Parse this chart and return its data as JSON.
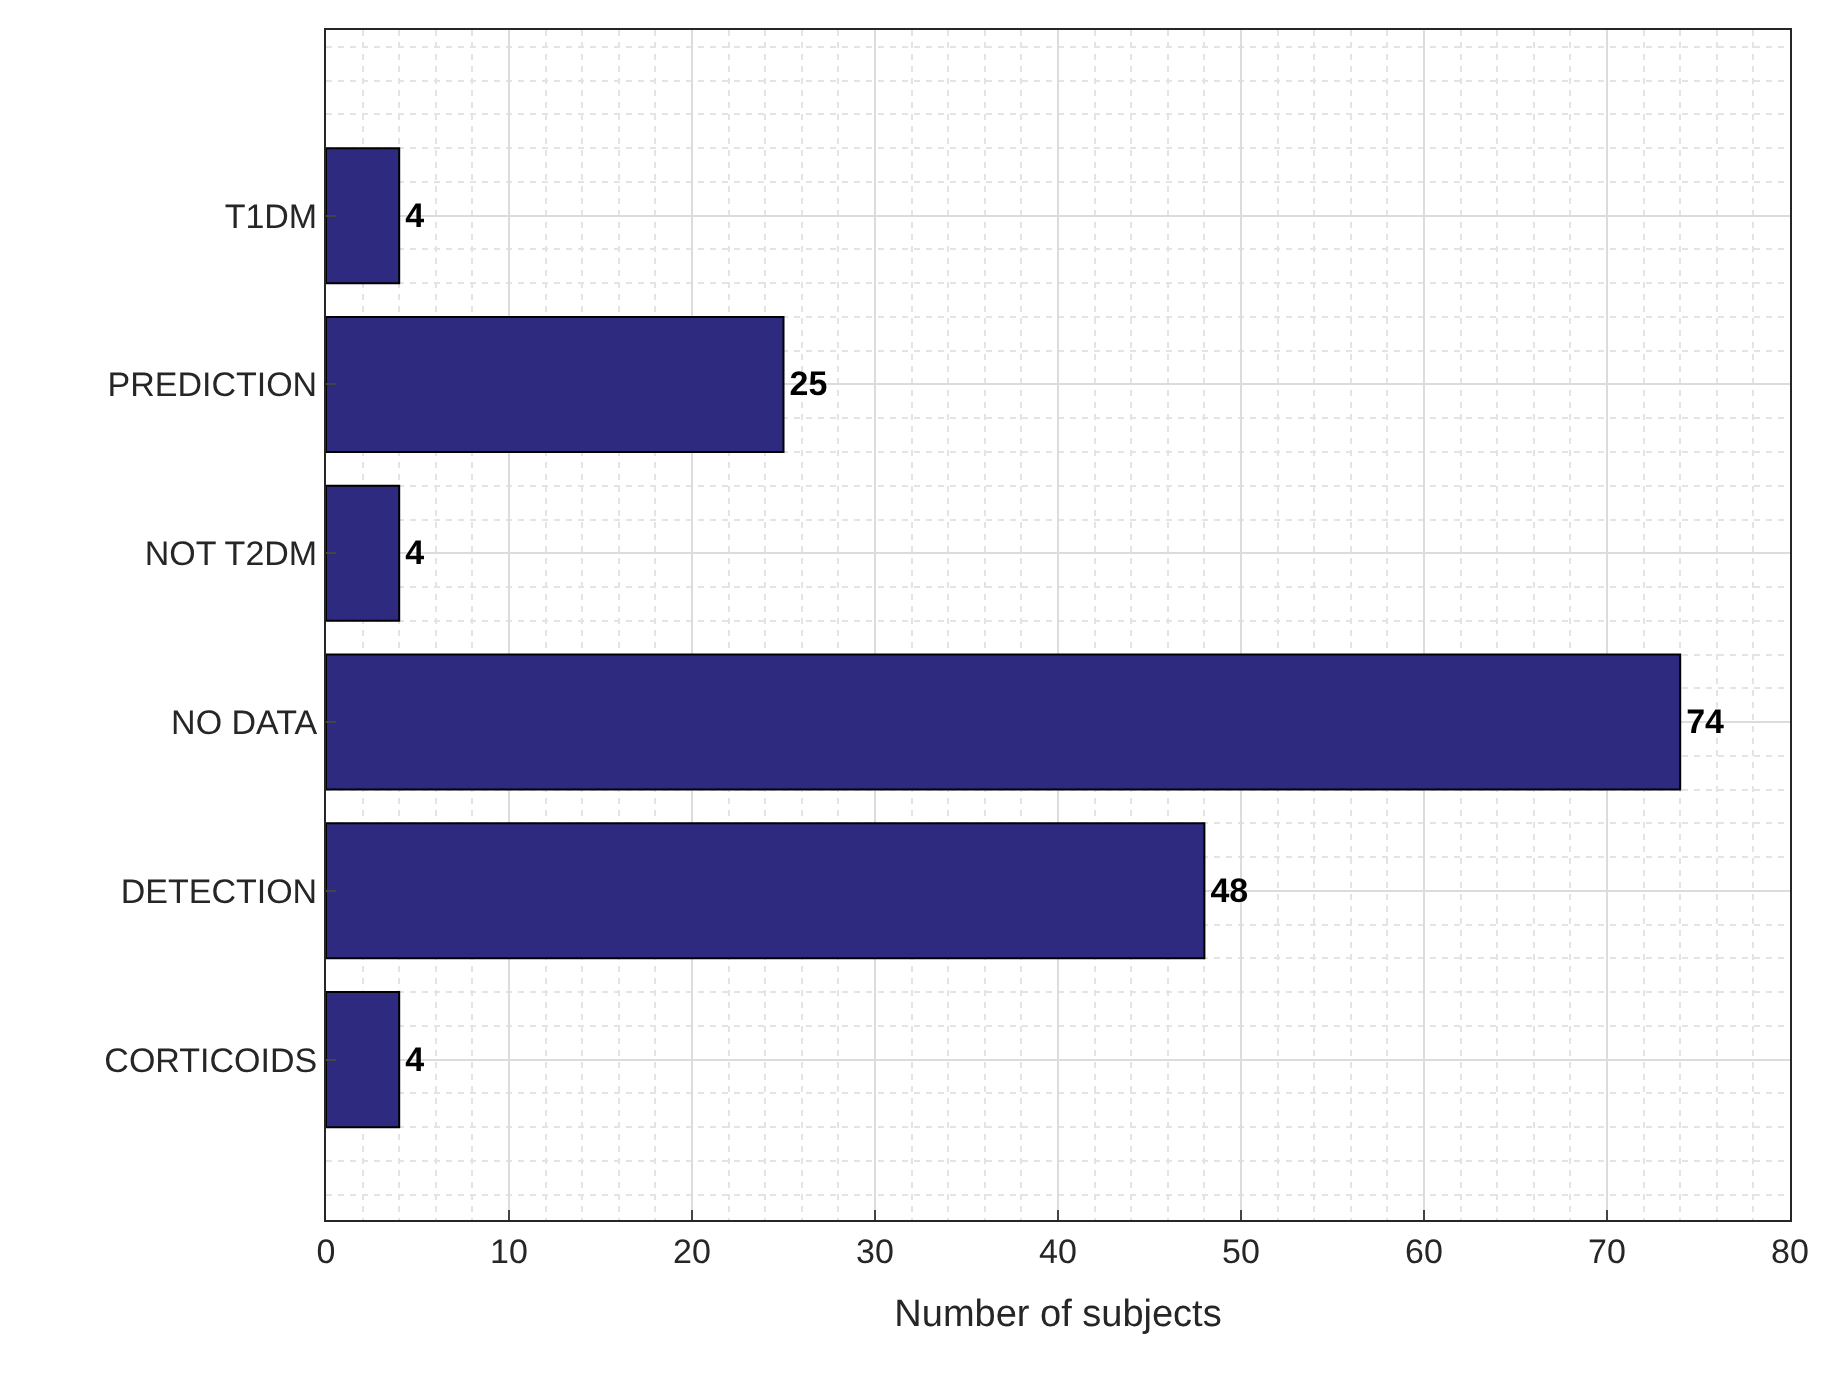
{
  "chart_data": {
    "type": "bar",
    "orientation": "horizontal",
    "xlabel": "Number of subjects",
    "categories": [
      "T1DM",
      "PREDICTION",
      "NOT T2DM",
      "NO DATA",
      "DETECTION",
      "CORTICOIDS"
    ],
    "values": [
      4,
      25,
      4,
      74,
      48,
      4
    ],
    "color": "#2e2a7f",
    "xlim": [
      0,
      80
    ],
    "xticks": [
      0,
      10,
      20,
      30,
      40,
      50,
      60,
      70,
      80
    ],
    "grid": true,
    "data_labels": true
  }
}
